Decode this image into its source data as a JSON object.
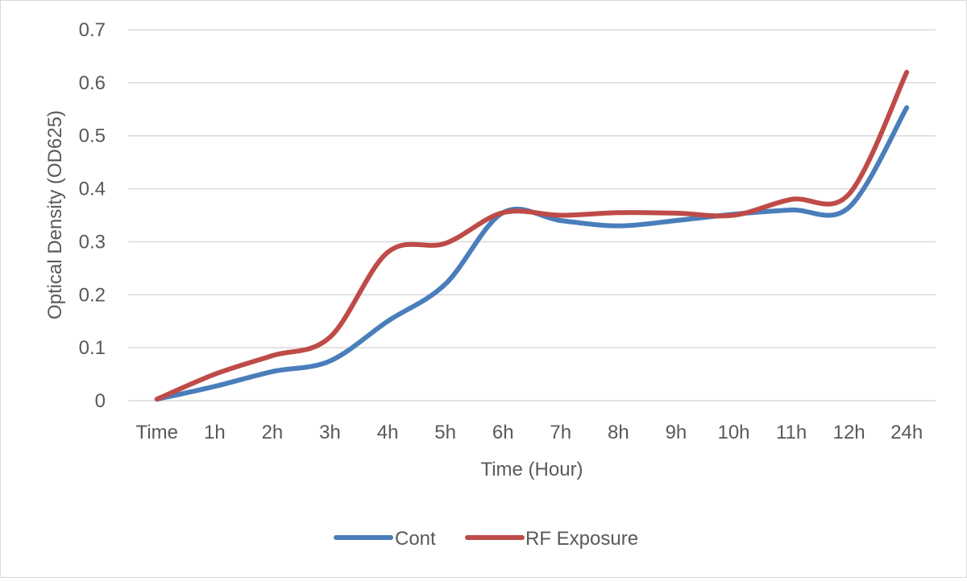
{
  "chart_data": {
    "type": "line",
    "title": "",
    "xlabel": "Time (Hour)",
    "ylabel": "Optical Density (OD625)",
    "categories": [
      "Time",
      "1h",
      "2h",
      "3h",
      "4h",
      "5h",
      "6h",
      "7h",
      "8h",
      "9h",
      "10h",
      "11h",
      "12h",
      "24h"
    ],
    "ylim": [
      0,
      0.7
    ],
    "yticks": [
      "0",
      "0.1",
      "0.2",
      "0.3",
      "0.4",
      "0.5",
      "0.6",
      "0.7"
    ],
    "grid": true,
    "legend_position": "bottom",
    "series": [
      {
        "name": "Cont",
        "color": "#4a7ebb",
        "values": [
          0.003,
          0.027,
          0.055,
          0.075,
          0.15,
          0.22,
          0.355,
          0.34,
          0.33,
          0.34,
          0.352,
          0.36,
          0.365,
          0.553
        ]
      },
      {
        "name": "RF Exposure",
        "color": "#be4b48",
        "values": [
          0.003,
          0.05,
          0.085,
          0.12,
          0.28,
          0.297,
          0.355,
          0.35,
          0.355,
          0.354,
          0.35,
          0.38,
          0.39,
          0.62
        ]
      }
    ]
  }
}
